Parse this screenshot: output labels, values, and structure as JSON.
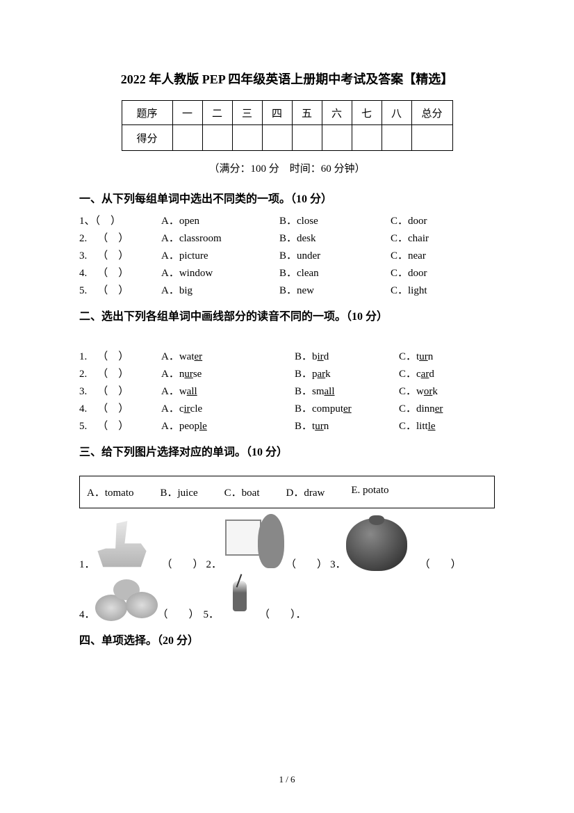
{
  "title": "2022 年人教版 PEP 四年级英语上册期中考试及答案【精选】",
  "score_table": {
    "headers": [
      "题序",
      "一",
      "二",
      "三",
      "四",
      "五",
      "六",
      "七",
      "八",
      "总分"
    ],
    "row_label": "得分"
  },
  "subtitle": "（满分：100 分 时间：60 分钟）",
  "section1": {
    "heading": "一、从下列每组单词中选出不同类的一项。（10 分）",
    "questions": [
      {
        "n": "1、（ ）",
        "a": "A．open",
        "b": "B．close",
        "c": "C．door"
      },
      {
        "n": "2. （ ）",
        "a": "A．classroom",
        "b": "B．desk",
        "c": "C．chair"
      },
      {
        "n": "3. （ ）",
        "a": "A．picture",
        "b": "B．under",
        "c": "C．near"
      },
      {
        "n": "4. （ ）",
        "a": "A．window",
        "b": "B．clean",
        "c": "C．door"
      },
      {
        "n": "5. （ ）",
        "a": "A．big",
        "b": "B．new",
        "c": "C．light"
      }
    ]
  },
  "section2": {
    "heading": "二、选出下列各组单词中画线部分的读音不同的一项。（10 分）",
    "questions": [
      {
        "n": "1. （ ）",
        "a_pre": "A．wat",
        "a_u": "er",
        "a_post": "",
        "b_pre": "B．b",
        "b_u": "ir",
        "b_post": "d",
        "c_pre": "C．t",
        "c_u": "ur",
        "c_post": "n"
      },
      {
        "n": "2. （ ）",
        "a_pre": "A．n",
        "a_u": "ur",
        "a_post": "se",
        "b_pre": "B．p",
        "b_u": "ar",
        "b_post": "k",
        "c_pre": "C．c",
        "c_u": "ar",
        "c_post": "d"
      },
      {
        "n": "3. （ ）",
        "a_pre": "A．w",
        "a_u": "all",
        "a_post": "",
        "b_pre": "B．sm",
        "b_u": "all",
        "b_post": "",
        "c_pre": "C．w",
        "c_u": "or",
        "c_post": "k"
      },
      {
        "n": "4. （ ）",
        "a_pre": "A．c",
        "a_u": "ir",
        "a_post": "cle",
        "b_pre": "B．comput",
        "b_u": "er",
        "b_post": "",
        "c_pre": "C．dinn",
        "c_u": "er",
        "c_post": ""
      },
      {
        "n": "5. （ ）",
        "a_pre": "A．peop",
        "a_u": "le",
        "a_post": "",
        "b_pre": "B．t",
        "b_u": "ur",
        "b_post": "n",
        "c_pre": "C．litt",
        "c_u": "le",
        "c_post": ""
      }
    ]
  },
  "section3": {
    "heading": "三、给下列图片选择对应的单词。（10 分）",
    "options": [
      "A．tomato",
      "B．juice",
      "C．boat",
      "D．draw",
      "E. potato"
    ],
    "row1": [
      {
        "n": "1．",
        "paren": "（  ）"
      },
      {
        "n": "2．",
        "paren": "（  ）"
      },
      {
        "n": "3．",
        "paren": "（  ）"
      }
    ],
    "row2": [
      {
        "n": "4．",
        "paren": "（  ）"
      },
      {
        "n": "5．",
        "paren": "（  ）．"
      }
    ]
  },
  "section4": {
    "heading": "四、单项选择。（20 分）"
  },
  "footer": "1 / 6"
}
